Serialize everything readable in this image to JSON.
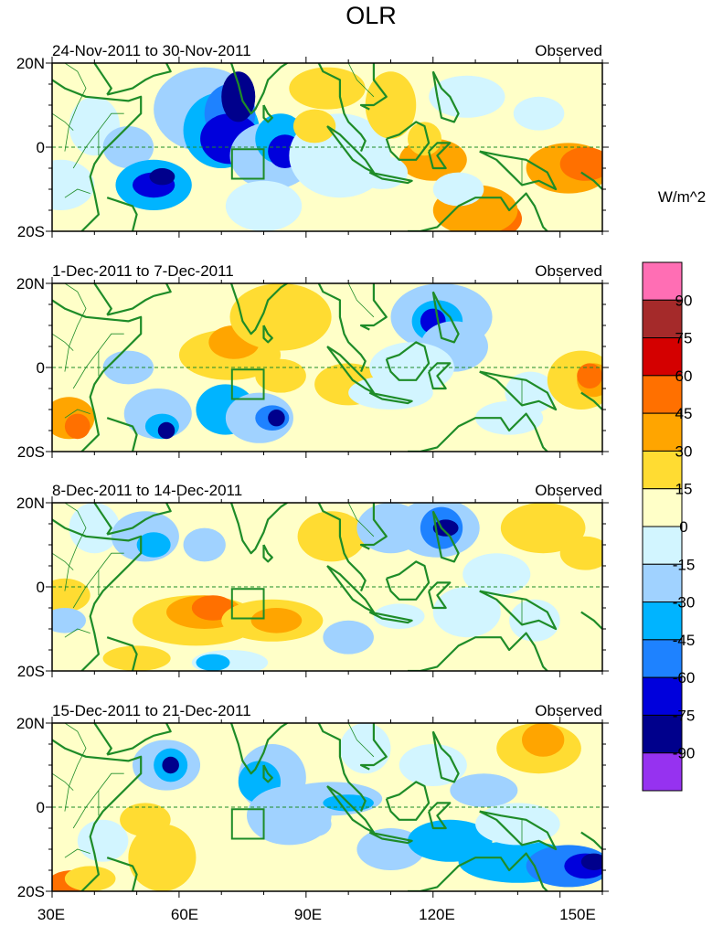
{
  "title": "OLR",
  "units": "W/m^2",
  "panels": [
    {
      "period": "24-Nov-2011 to 30-Nov-2011",
      "tag": "Observed"
    },
    {
      "period": "1-Dec-2011 to 7-Dec-2011",
      "tag": "Observed"
    },
    {
      "period": "8-Dec-2011 to 14-Dec-2011",
      "tag": "Observed"
    },
    {
      "period": "15-Dec-2011 to 21-Dec-2011",
      "tag": "Observed"
    }
  ],
  "lat_labels": [
    "20N",
    "0",
    "20S"
  ],
  "lon_labels": [
    "30E",
    "60E",
    "90E",
    "120E",
    "150E"
  ],
  "colorbar": {
    "labels": [
      "90",
      "75",
      "60",
      "45",
      "30",
      "15",
      "0",
      "-15",
      "-30",
      "-45",
      "-60",
      "-75",
      "-90"
    ],
    "colors": [
      "#ff6eb4",
      "#a52a2a",
      "#d40000",
      "#ff7000",
      "#ffa500",
      "#ffdc32",
      "#ffffc8",
      "#d2f5ff",
      "#a0d2ff",
      "#00b4ff",
      "#1e82ff",
      "#0000dc",
      "#00008c",
      "#9632f0"
    ]
  },
  "colors": {
    "coast": "#1e8c28",
    "land_border": "#1e8c28",
    "background_zero": "#ffffc8"
  }
}
